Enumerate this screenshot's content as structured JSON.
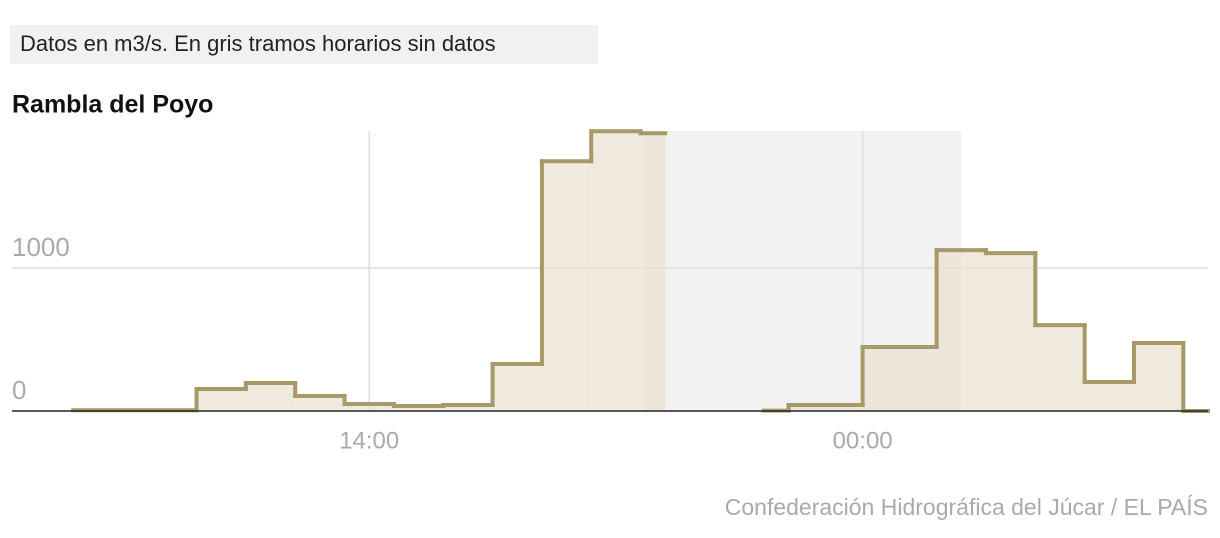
{
  "chart_data": {
    "type": "step",
    "note": "Datos en m3/s. En gris tramos horarios sin datos",
    "title": "Rambla del Poyo",
    "source": "Confederación Hidrográfica del Júcar / EL PAÍS",
    "x": [
      8,
      10.5,
      11.5,
      12.5,
      13.5,
      14.5,
      15.5,
      16.5,
      17.5,
      18.5,
      19.5,
      20,
      22,
      22.5,
      24,
      25.5,
      26.5,
      27.5,
      28.5,
      29.5,
      30.5
    ],
    "values": [
      5,
      154,
      196,
      105,
      49,
      35,
      42,
      329,
      1748,
      1958,
      1944,
      null,
      3,
      42,
      448,
      1126,
      1105,
      601,
      203,
      476,
      0
    ],
    "no_data_range": [
      19.6,
      26
    ],
    "color": "#a89968",
    "fill": "#ebe3d3",
    "no_data_color": "#f2f2f2",
    "xlim": [
      6.76,
      31
    ],
    "ylim": [
      0,
      1960
    ],
    "xticks": [
      {
        "value": 14,
        "label": "14:00"
      },
      {
        "value": 24,
        "label": "00:00"
      }
    ],
    "yticks": [
      0,
      1000
    ],
    "grid": true
  }
}
